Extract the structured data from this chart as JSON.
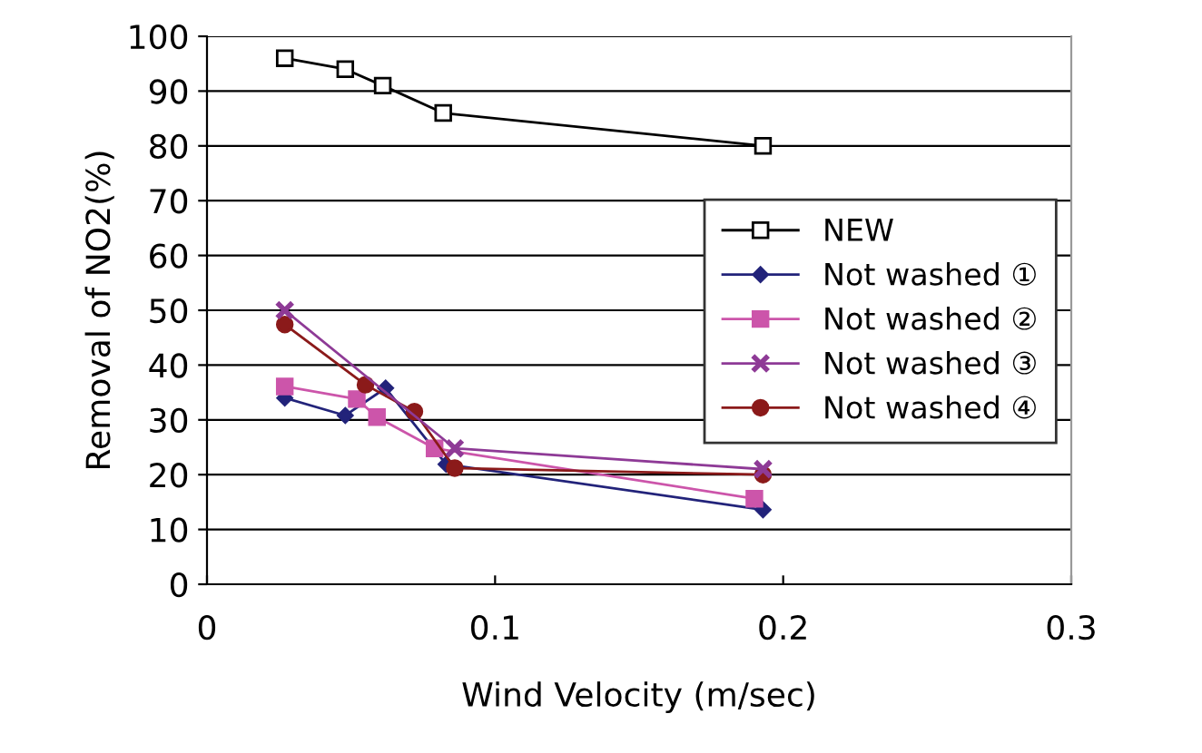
{
  "chart_data": {
    "type": "line",
    "xlabel": "Wind Velocity (m/sec)",
    "ylabel": "Removal of NO2(%)",
    "xlim": [
      0,
      0.3
    ],
    "xticks": [
      0,
      0.1,
      0.2,
      0.3
    ],
    "ylim": [
      0,
      100
    ],
    "yticks": [
      0,
      10,
      20,
      30,
      40,
      50,
      60,
      70,
      80,
      90,
      100
    ],
    "grid": "y",
    "legend": "right",
    "series": [
      {
        "name": "NEW",
        "color": "#000000",
        "marker": "square",
        "x": [
          0.027,
          0.048,
          0.061,
          0.082,
          0.193
        ],
        "values": [
          96,
          94,
          91,
          86,
          80
        ]
      },
      {
        "name": "Not washed ①",
        "color": "#22237a",
        "marker": "diamond",
        "x": [
          0.027,
          0.048,
          0.062,
          0.083,
          0.193
        ],
        "values": [
          34,
          30.8,
          35.8,
          21.9,
          13.6
        ]
      },
      {
        "name": "Not washed ②",
        "color": "#cc55aa",
        "marker": "square",
        "x": [
          0.027,
          0.052,
          0.059,
          0.079,
          0.19
        ],
        "values": [
          36.1,
          33.8,
          30.5,
          24.8,
          15.6
        ]
      },
      {
        "name": "Not washed ③",
        "color": "#8e3a96",
        "marker": "cross",
        "x": [
          0.027,
          0.086,
          0.193
        ],
        "values": [
          50,
          24.8,
          21
        ]
      },
      {
        "name": "Not washed ④",
        "color": "#8b1a1a",
        "marker": "circle",
        "x": [
          0.027,
          0.055,
          0.072,
          0.086,
          0.193
        ],
        "values": [
          47.4,
          36.4,
          31.5,
          21.2,
          20
        ]
      }
    ]
  }
}
